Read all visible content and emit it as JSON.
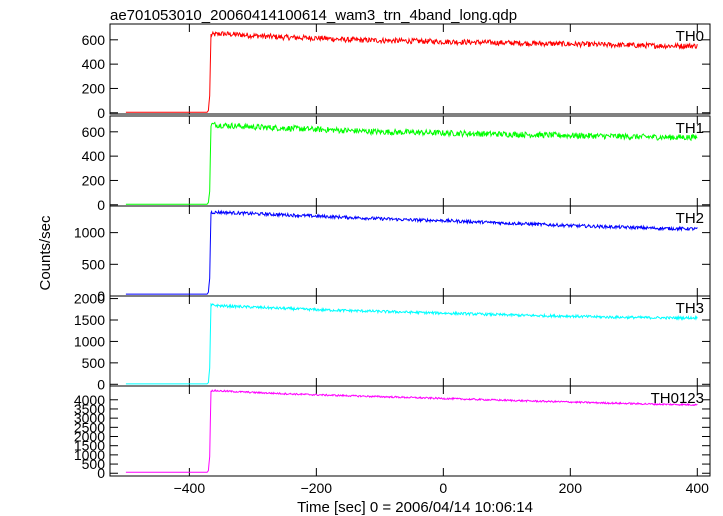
{
  "chart_data": {
    "type": "line",
    "title": "ae701053010_20060414100614_wam3_trn_4band_long.qdp",
    "xlabel": "Time [sec] 0 = 2006/04/14 10:06:14",
    "ylabel": "Counts/sec",
    "xlim": [
      -525,
      420
    ],
    "xticks": [
      -400,
      -200,
      0,
      200,
      400
    ],
    "grid": false,
    "panels": [
      {
        "name": "TH0",
        "color": "#ff0000",
        "ylim": [
          -10,
          730
        ],
        "yticks": [
          0,
          200,
          400,
          600
        ],
        "x": [
          -500,
          -372,
          -370,
          -368,
          -366,
          -350,
          -300,
          -250,
          -200,
          -150,
          -100,
          -50,
          0,
          50,
          100,
          150,
          200,
          250,
          300,
          350,
          400
        ],
        "values": [
          5,
          5,
          20,
          140,
          640,
          650,
          635,
          620,
          615,
          600,
          595,
          590,
          585,
          580,
          575,
          570,
          565,
          560,
          555,
          550,
          550
        ],
        "noise": 22
      },
      {
        "name": "TH1",
        "color": "#00ff00",
        "ylim": [
          -10,
          730
        ],
        "yticks": [
          0,
          200,
          400,
          600
        ],
        "x": [
          -500,
          -372,
          -370,
          -368,
          -366,
          -350,
          -300,
          -250,
          -200,
          -150,
          -100,
          -50,
          0,
          50,
          100,
          150,
          200,
          250,
          300,
          350,
          400
        ],
        "values": [
          5,
          5,
          20,
          110,
          660,
          655,
          640,
          630,
          620,
          610,
          600,
          595,
          590,
          585,
          580,
          575,
          570,
          565,
          560,
          555,
          555
        ],
        "noise": 24
      },
      {
        "name": "TH2",
        "color": "#0000ff",
        "ylim": [
          0,
          1420
        ],
        "yticks": [
          0,
          500,
          1000
        ],
        "x": [
          -500,
          -372,
          -370,
          -368,
          -366,
          -350,
          -300,
          -250,
          -200,
          -150,
          -100,
          -50,
          0,
          50,
          100,
          150,
          200,
          250,
          300,
          350,
          400
        ],
        "values": [
          30,
          30,
          60,
          280,
          1320,
          1320,
          1300,
          1280,
          1260,
          1240,
          1220,
          1200,
          1190,
          1170,
          1150,
          1130,
          1110,
          1095,
          1080,
          1065,
          1060
        ],
        "noise": 25
      },
      {
        "name": "TH3",
        "color": "#00ffff",
        "ylim": [
          -40,
          2060
        ],
        "yticks": [
          0,
          500,
          1000,
          1500,
          2000
        ],
        "x": [
          -500,
          -372,
          -370,
          -368,
          -366,
          -350,
          -300,
          -250,
          -200,
          -150,
          -100,
          -50,
          0,
          50,
          100,
          150,
          200,
          250,
          300,
          350,
          400
        ],
        "values": [
          10,
          10,
          40,
          380,
          1850,
          1830,
          1800,
          1770,
          1740,
          1720,
          1700,
          1680,
          1660,
          1640,
          1620,
          1600,
          1590,
          1570,
          1560,
          1550,
          1550
        ],
        "noise": 30
      },
      {
        "name": "TH0123",
        "color": "#ff00ff",
        "ylim": [
          -150,
          4750
        ],
        "yticks": [
          0,
          500,
          1000,
          1500,
          2000,
          2500,
          3000,
          3500,
          4000
        ],
        "x": [
          -500,
          -372,
          -370,
          -368,
          -366,
          -350,
          -300,
          -250,
          -200,
          -150,
          -100,
          -50,
          0,
          50,
          100,
          150,
          200,
          250,
          300,
          350,
          400
        ],
        "values": [
          50,
          50,
          150,
          900,
          4500,
          4480,
          4400,
          4330,
          4270,
          4220,
          4170,
          4120,
          4070,
          4020,
          3970,
          3920,
          3880,
          3830,
          3790,
          3750,
          3730
        ],
        "noise": 45
      }
    ]
  }
}
